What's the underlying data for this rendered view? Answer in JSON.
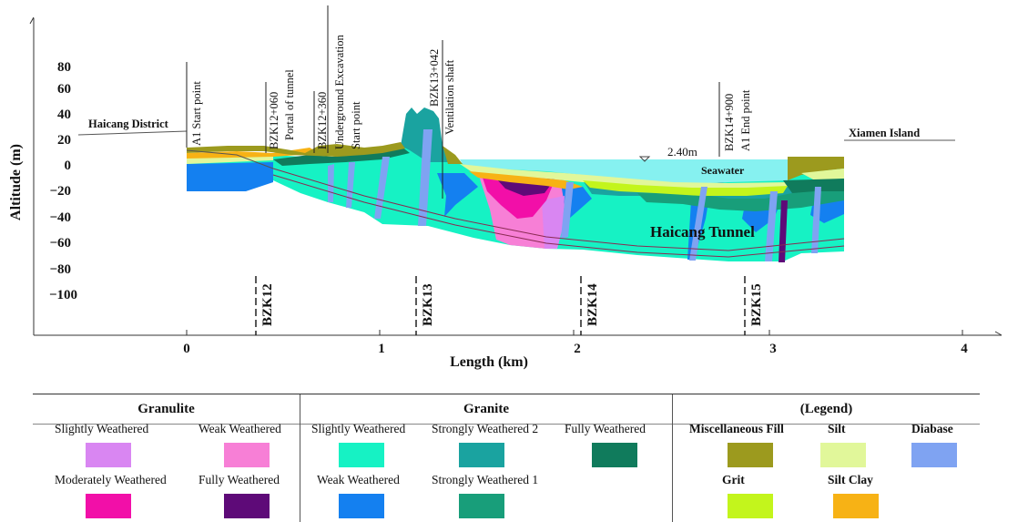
{
  "figure": {
    "y_axis": {
      "label": "Altitude (m)",
      "ticks": [
        "80",
        "60",
        "40",
        "20",
        "0",
        "−20",
        "−40",
        "−60",
        "−80",
        "−100"
      ]
    },
    "x_axis": {
      "label": "Length (km)",
      "ticks": [
        "0",
        "1",
        "2",
        "3",
        "4"
      ]
    },
    "places": {
      "left": "Haicang District",
      "right": "Xiamen Island"
    },
    "stations": [
      {
        "id": "station-a1-start",
        "lines": [
          "A1 Start point"
        ]
      },
      {
        "id": "station-bzk12-060",
        "lines": [
          "BZK12+060",
          "Portal of tunnel"
        ]
      },
      {
        "id": "station-bzk12-360",
        "lines": [
          "BZK12+360",
          "Underground Excavation",
          "Start point"
        ]
      },
      {
        "id": "station-bzk13-042",
        "lines": [
          "BZK13+042",
          "Ventilation  shaft"
        ]
      },
      {
        "id": "station-bzk14-900",
        "lines": [
          "BZK14+900",
          "A1 End  point"
        ]
      }
    ],
    "boreholes": [
      "BZK12",
      "BZK13",
      "BZK14",
      "BZK15"
    ],
    "water_level": "2.40m",
    "seawater_label": "Seawater",
    "tunnel_label": "Haicang Tunnel"
  },
  "legend": {
    "granulite": {
      "title": "Granulite",
      "items": [
        {
          "label": "Slightly Weathered",
          "color": "#D986F2"
        },
        {
          "label": "Weak Weathered",
          "color": "#F77FD6"
        },
        {
          "label": "Moderately  Weathered",
          "color": "#F20FA8"
        },
        {
          "label": "Fully  Weathered",
          "color": "#5E0A78"
        }
      ]
    },
    "granite": {
      "title": "Granite",
      "items": [
        {
          "label": "Slightly Weathered",
          "color": "#16F2C4"
        },
        {
          "label": "Strongly Weathered 2",
          "color": "#1AA3A0"
        },
        {
          "label": "Fully  Weathered",
          "color": "#107B5C"
        },
        {
          "label": "Weak  Weathered",
          "color": "#1480F0"
        },
        {
          "label": "Strongly Weathered 1",
          "color": "#189E7A"
        }
      ]
    },
    "misc": {
      "title": "(Legend)",
      "items": [
        {
          "label": "Miscellaneous Fill",
          "color": "#9C9A1E"
        },
        {
          "label": "Silt",
          "color": "#E1F79A"
        },
        {
          "label": "Diabase",
          "color": "#7FA3F2"
        },
        {
          "label": "Grit",
          "color": "#C3F51C"
        },
        {
          "label": "Silt Clay",
          "color": "#F7B215"
        }
      ]
    }
  },
  "colors": {
    "seawater": "#86F1F0"
  }
}
